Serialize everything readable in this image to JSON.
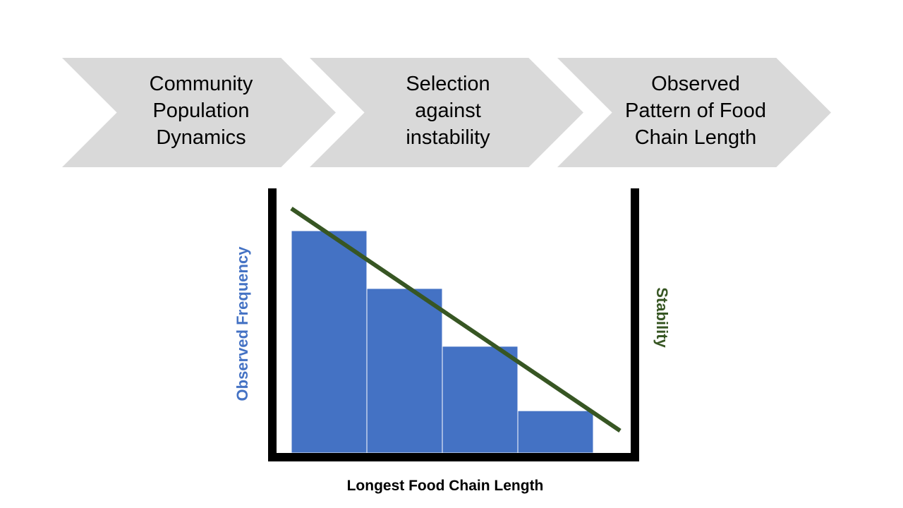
{
  "flow": {
    "steps": [
      {
        "label": "Community\nPopulation\nDynamics"
      },
      {
        "label": "Selection\nagainst\ninstability"
      },
      {
        "label": "Observed\nPattern of Food\nChain Length"
      }
    ]
  },
  "chart_data": {
    "type": "bar",
    "xlabel": "Longest Food Chain Length",
    "ylabel": "Observed Frequency",
    "y2label": "Stability",
    "values": [
      1.0,
      0.74,
      0.48,
      0.19
    ],
    "trend_line": {
      "start": 1.1,
      "end": 0.1
    },
    "colors": {
      "bars": "#4472c4",
      "trend": "#375623",
      "frame": "#000000",
      "chevrons": "#d9d9d9",
      "left_axis_label": "#4472c4",
      "right_axis_label": "#375623"
    }
  }
}
